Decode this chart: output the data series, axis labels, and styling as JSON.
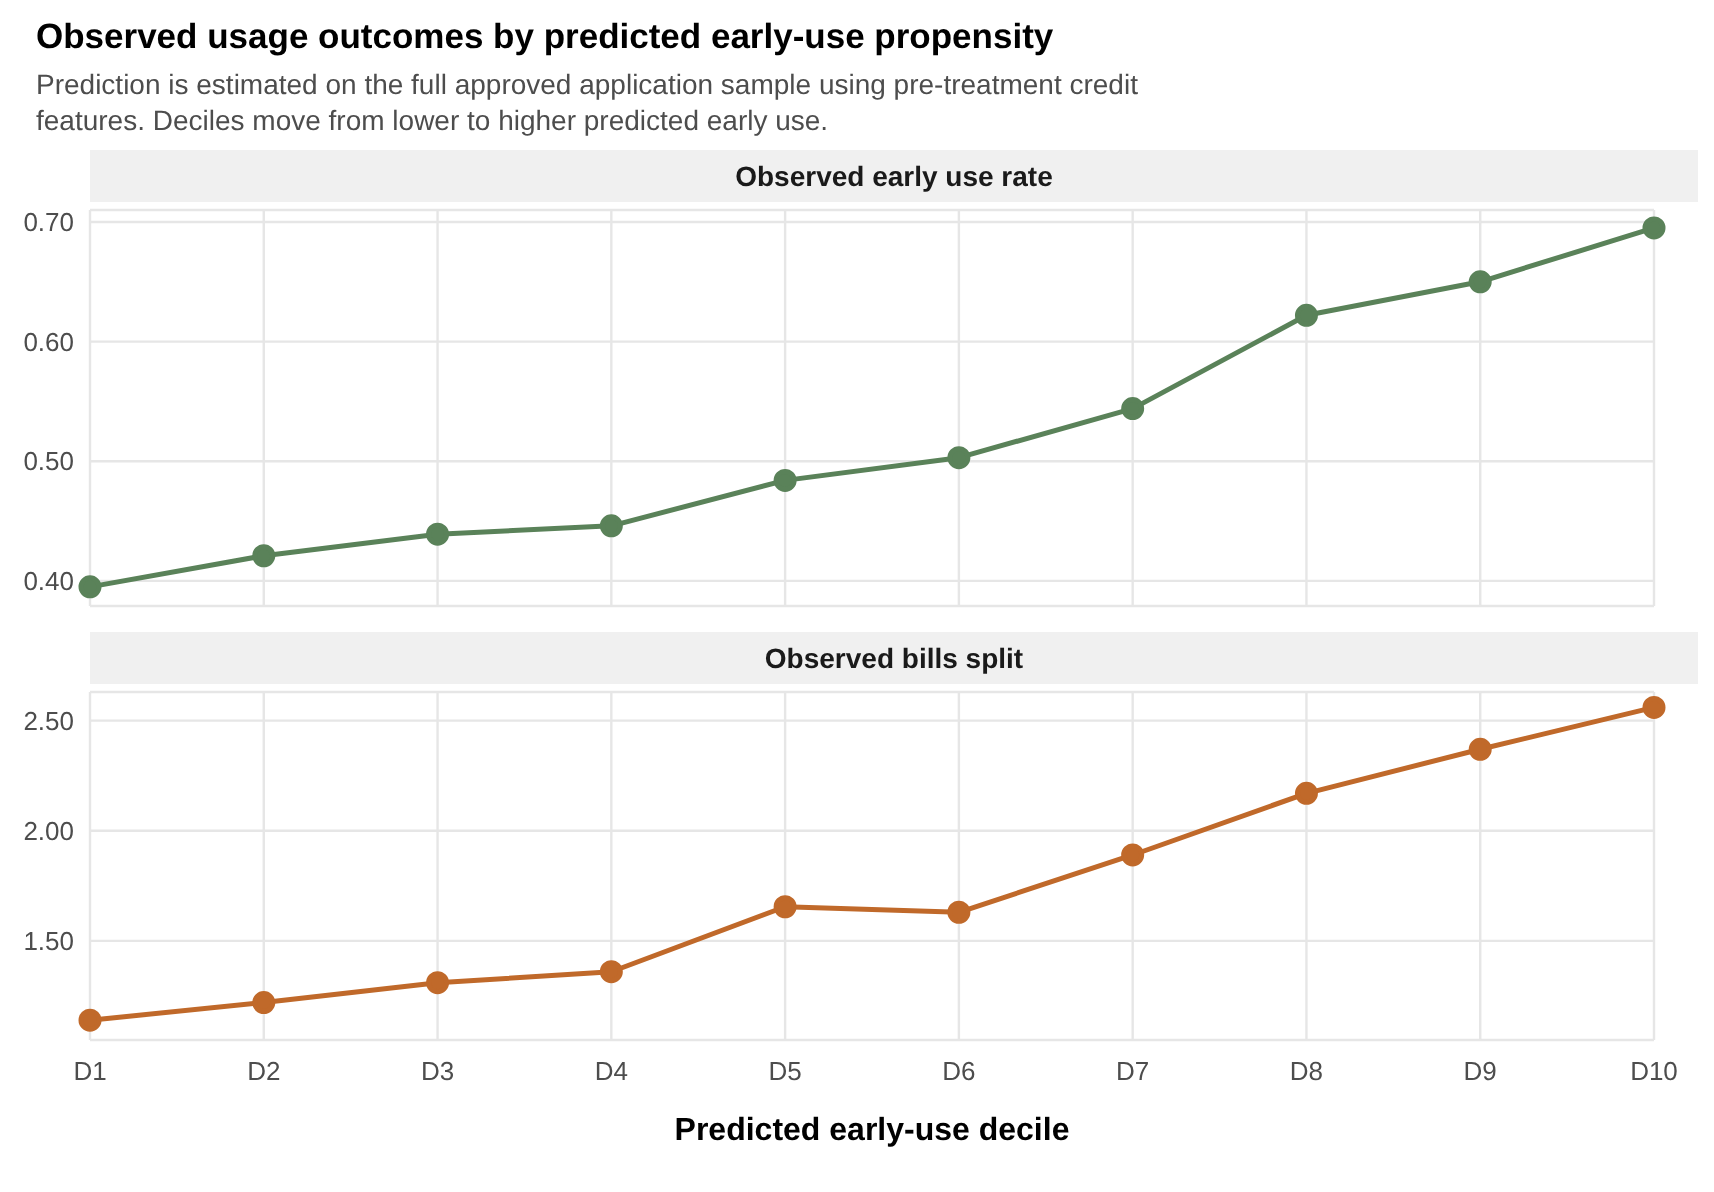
{
  "chart_data": [
    {
      "type": "line",
      "annotations": [
        "Observed usage outcomes by predicted early-use propensity",
        "Prediction is estimated on the full approved application sample using pre-treatment credit features. Deciles move from lower to higher predicted early use."
      ],
      "title": "Observed early use rate",
      "categories": [
        null,
        null,
        null,
        null,
        null,
        null,
        null,
        null,
        null,
        null
      ],
      "series": [
        {
          "color": "#5a8259",
          "values": [
            0.395,
            0.421,
            0.439,
            0.446,
            0.484,
            0.503,
            0.544,
            0.622,
            0.65,
            0.695
          ]
        }
      ],
      "ylim": [
        0.379,
        0.71
      ],
      "yticks": [
        {
          "value": 0.4,
          "label": "0.40"
        },
        {
          "value": 0.5,
          "label": "0.50"
        },
        {
          "value": 0.6,
          "label": "0.60"
        },
        {
          "value": 0.7,
          "label": "0.70"
        }
      ],
      "grid": true,
      "marker": "circle"
    },
    {
      "type": "line",
      "title": "Observed bills split",
      "xlabel": "Predicted early-use decile",
      "categories": [
        "D1",
        "D2",
        "D3",
        "D4",
        "D5",
        "D6",
        "D7",
        "D8",
        "D9",
        "D10"
      ],
      "series": [
        {
          "color": "#c0692a",
          "values": [
            1.14,
            1.22,
            1.31,
            1.36,
            1.655,
            1.63,
            1.89,
            2.17,
            2.37,
            2.56
          ]
        }
      ],
      "ylim": [
        1.05,
        2.63
      ],
      "yticks": [
        {
          "value": 1.5,
          "label": "1.50"
        },
        {
          "value": 2.0,
          "label": "2.00"
        },
        {
          "value": 2.5,
          "label": "2.50"
        }
      ],
      "grid": true,
      "marker": "circle"
    }
  ]
}
